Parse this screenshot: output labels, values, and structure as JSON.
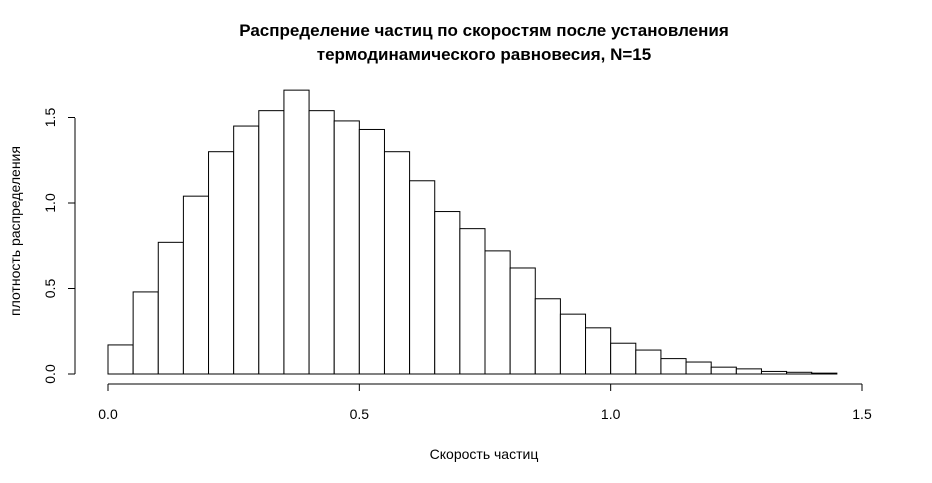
{
  "chart_data": {
    "type": "bar",
    "title_line1": "Распределение частиц по скоростям после установления",
    "title_line2": "термодинамического равновесия, N=15",
    "xlabel": "Скорость частиц",
    "ylabel": "плотность распределения",
    "xlim": [
      0,
      1.5
    ],
    "ylim": [
      0,
      1.7
    ],
    "x_ticks": [
      "0.0",
      "0.5",
      "1.0",
      "1.5"
    ],
    "y_ticks": [
      "0.0",
      "0.5",
      "1.0",
      "1.5"
    ],
    "bin_width": 0.05,
    "bin_starts": [
      0.0,
      0.05,
      0.1,
      0.15,
      0.2,
      0.25,
      0.3,
      0.35,
      0.4,
      0.45,
      0.5,
      0.55,
      0.6,
      0.65,
      0.7,
      0.75,
      0.8,
      0.85,
      0.9,
      0.95,
      1.0,
      1.05,
      1.1,
      1.15,
      1.2,
      1.25,
      1.3,
      1.35,
      1.4
    ],
    "values": [
      0.17,
      0.48,
      0.77,
      1.04,
      1.3,
      1.45,
      1.54,
      1.66,
      1.54,
      1.48,
      1.43,
      1.3,
      1.13,
      0.95,
      0.85,
      0.72,
      0.62,
      0.44,
      0.35,
      0.27,
      0.18,
      0.14,
      0.09,
      0.07,
      0.04,
      0.03,
      0.015,
      0.01,
      0.005
    ],
    "grid": false,
    "colors": {
      "bar_fill": "#ffffff",
      "bar_stroke": "#000000"
    }
  }
}
